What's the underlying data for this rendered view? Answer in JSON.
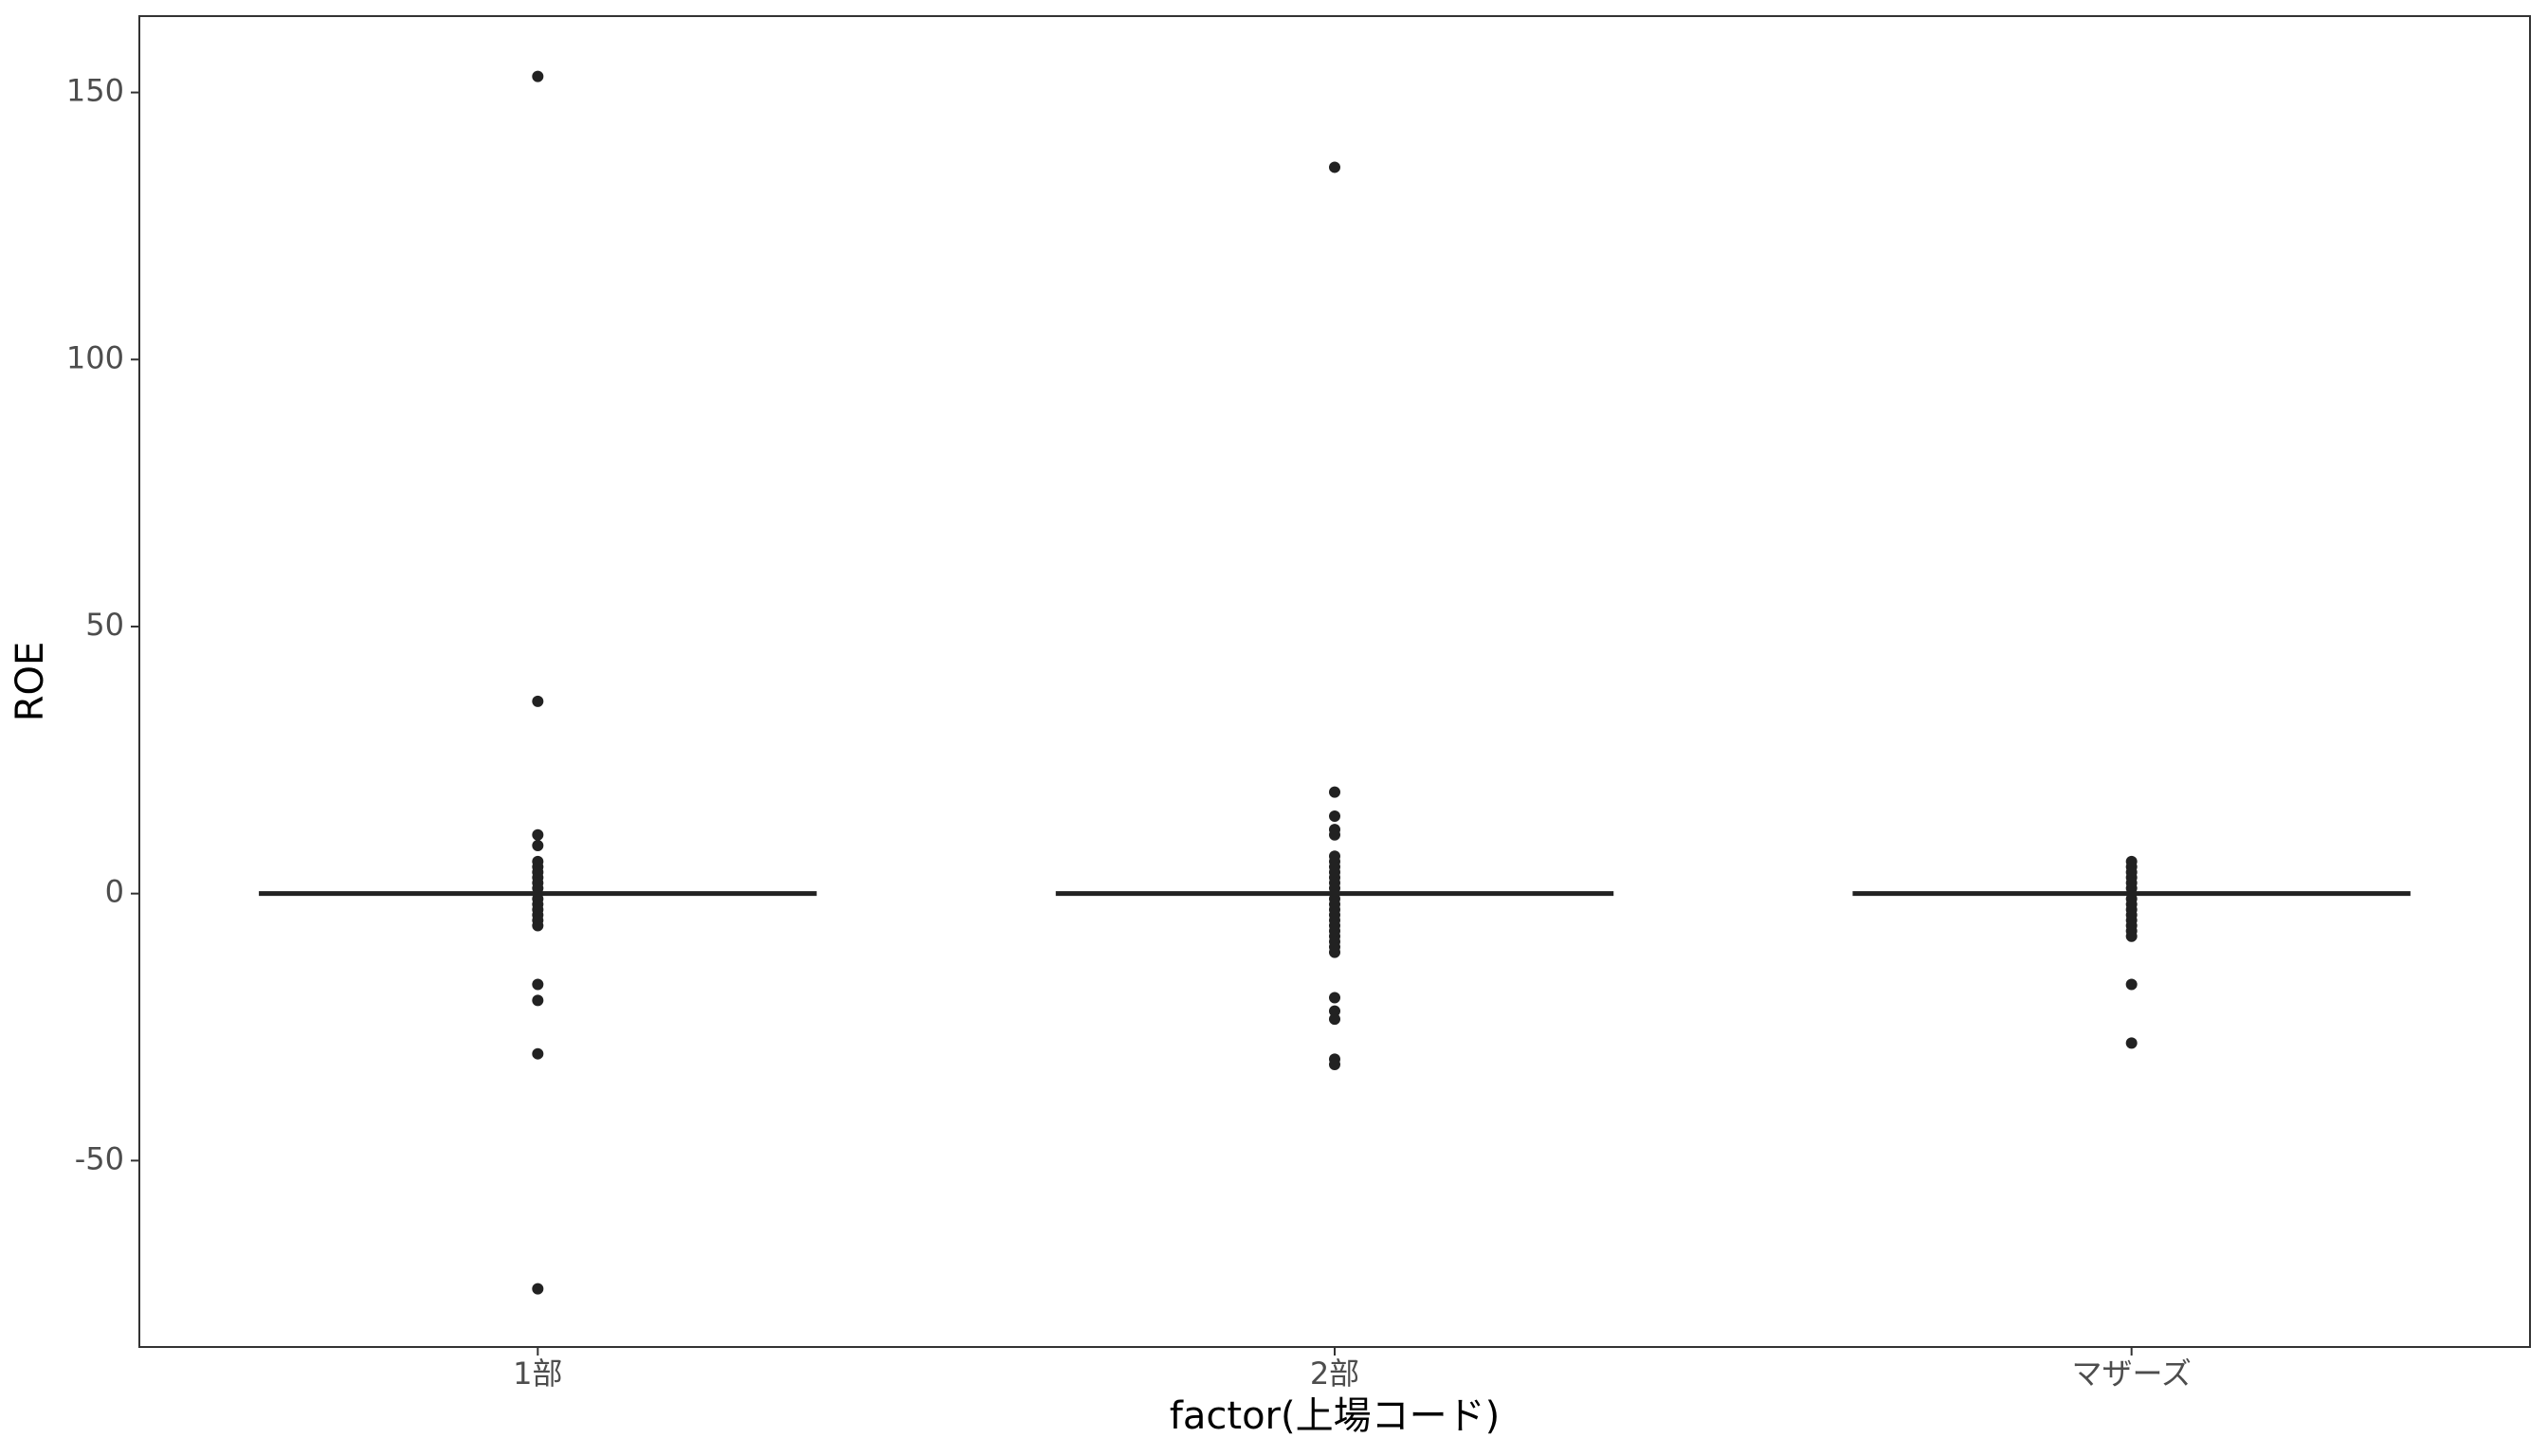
{
  "chart_data": {
    "type": "box",
    "x_label": "factor(上場コード)",
    "y_label": "ROE",
    "categories": [
      "1部",
      "2部",
      "マザーズ"
    ],
    "medians": [
      0,
      0,
      0
    ],
    "outliers": [
      [
        153,
        36,
        11,
        9,
        6,
        5,
        4,
        3,
        2,
        1,
        -1,
        -2,
        -3,
        -4,
        -5,
        -6,
        -17,
        -20,
        -30,
        -74
      ],
      [
        136,
        19,
        14.5,
        12,
        11,
        7,
        6,
        5,
        4,
        3,
        2,
        1,
        -1,
        -2,
        -3,
        -4,
        -5,
        -6,
        -7,
        -8,
        -9,
        -10,
        -11,
        -19.5,
        -22,
        -23.5,
        -31,
        -32
      ],
      [
        6,
        5,
        4,
        3,
        2,
        1,
        -1,
        -2,
        -3,
        -4,
        -5,
        -6,
        -7,
        -8,
        -17,
        -28
      ]
    ],
    "color": "#222222",
    "ylim": [
      -84.9,
      164.3
    ],
    "yticks": [
      -50,
      0,
      50,
      100,
      150
    ],
    "grid": false
  }
}
